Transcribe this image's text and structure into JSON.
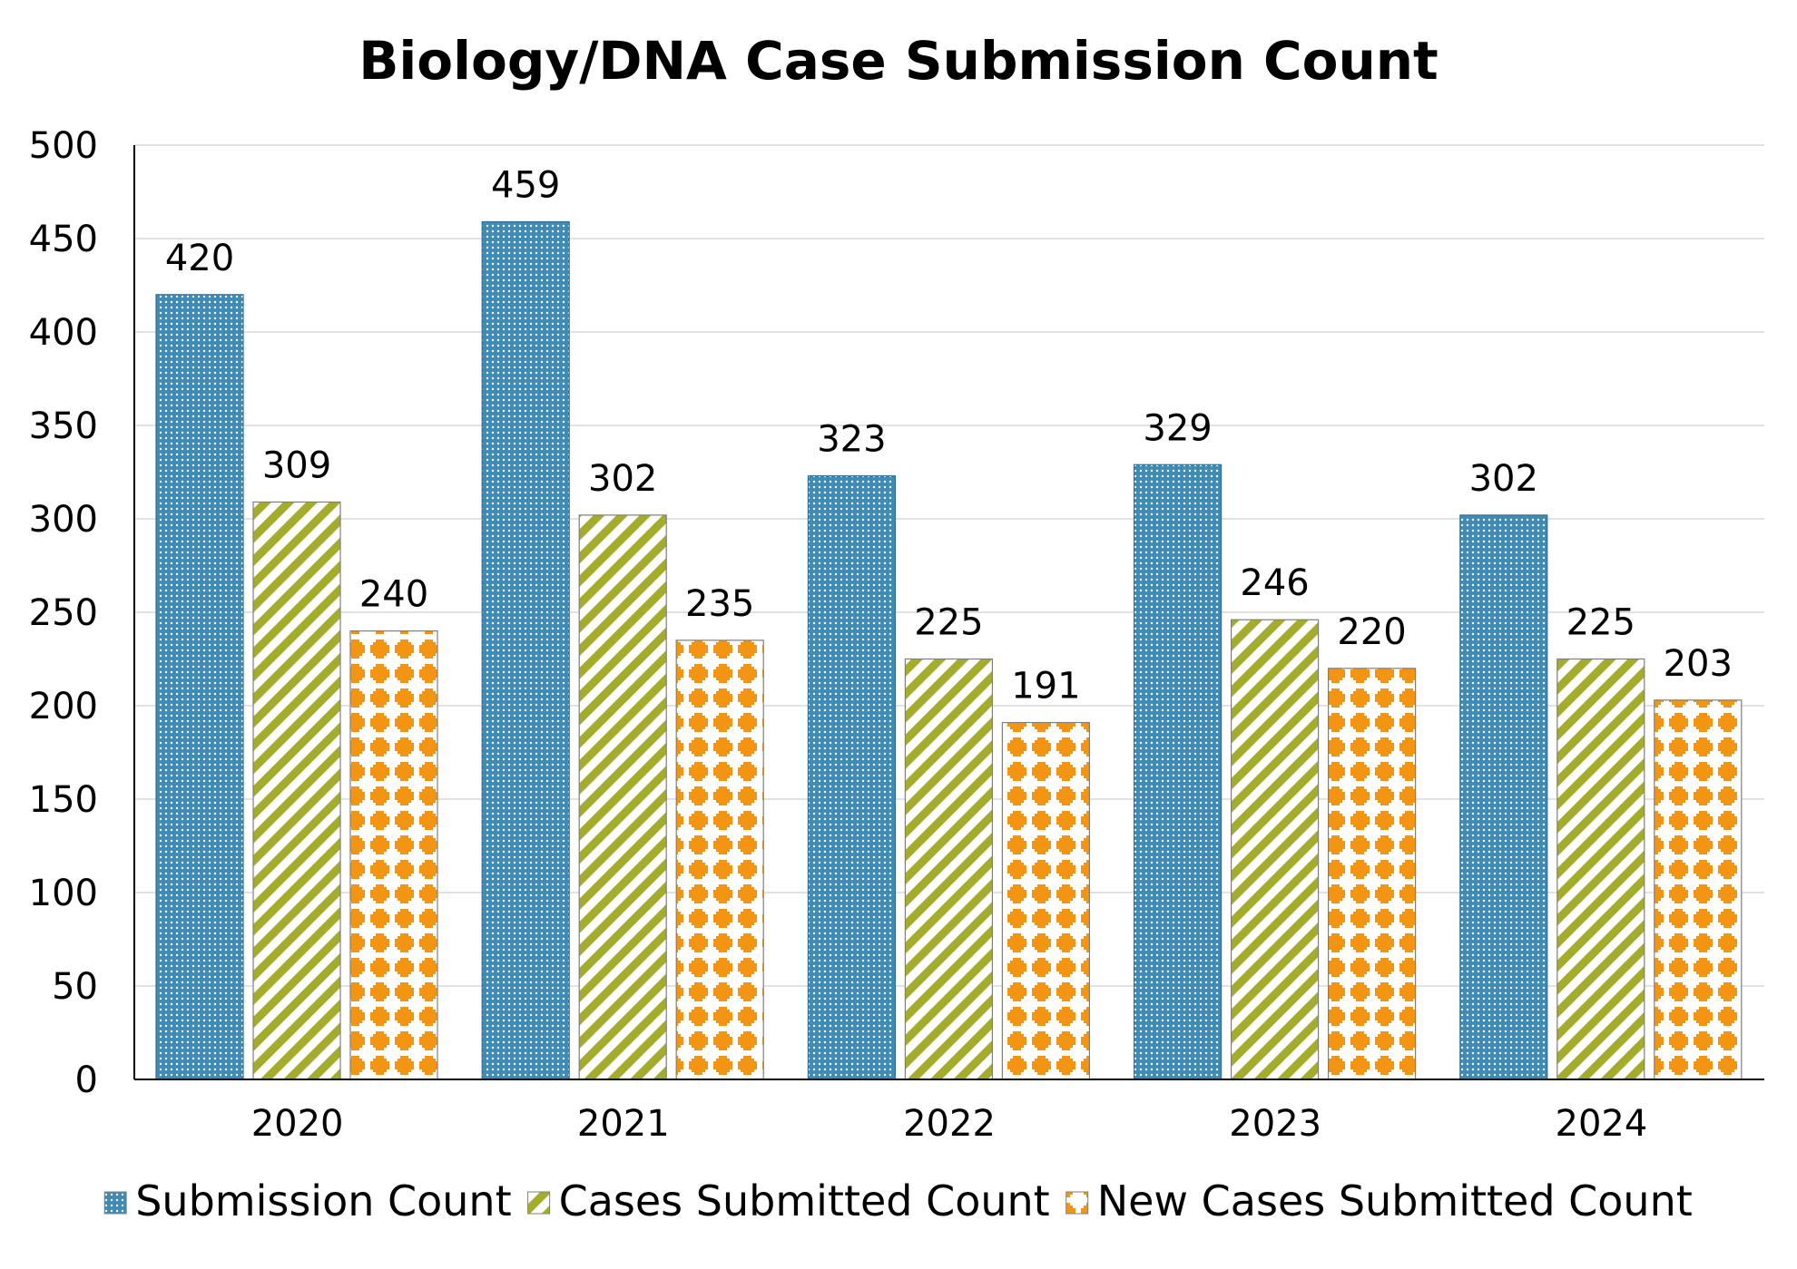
{
  "chart_data": {
    "type": "bar",
    "title": "Biology/DNA Case Submission Count",
    "xlabel": "",
    "ylabel": "",
    "categories": [
      "2020",
      "2021",
      "2022",
      "2023",
      "2024"
    ],
    "series": [
      {
        "name": "Submission Count",
        "values": [
          420,
          459,
          323,
          329,
          302
        ],
        "color": "#3f8bb5",
        "pattern": "dots"
      },
      {
        "name": "Cases Submitted Count",
        "values": [
          309,
          302,
          225,
          246,
          225
        ],
        "color": "#a3ad2b",
        "pattern": "diagonal-stripes"
      },
      {
        "name": "New Cases Submitted Count",
        "values": [
          240,
          235,
          191,
          220,
          203
        ],
        "color": "#f39512",
        "pattern": "crosses"
      }
    ],
    "ylim": [
      0,
      500
    ],
    "yticks": [
      0,
      50,
      100,
      150,
      200,
      250,
      300,
      350,
      400,
      450,
      500
    ],
    "grid": true,
    "legend_position": "bottom",
    "data_labels": true
  }
}
